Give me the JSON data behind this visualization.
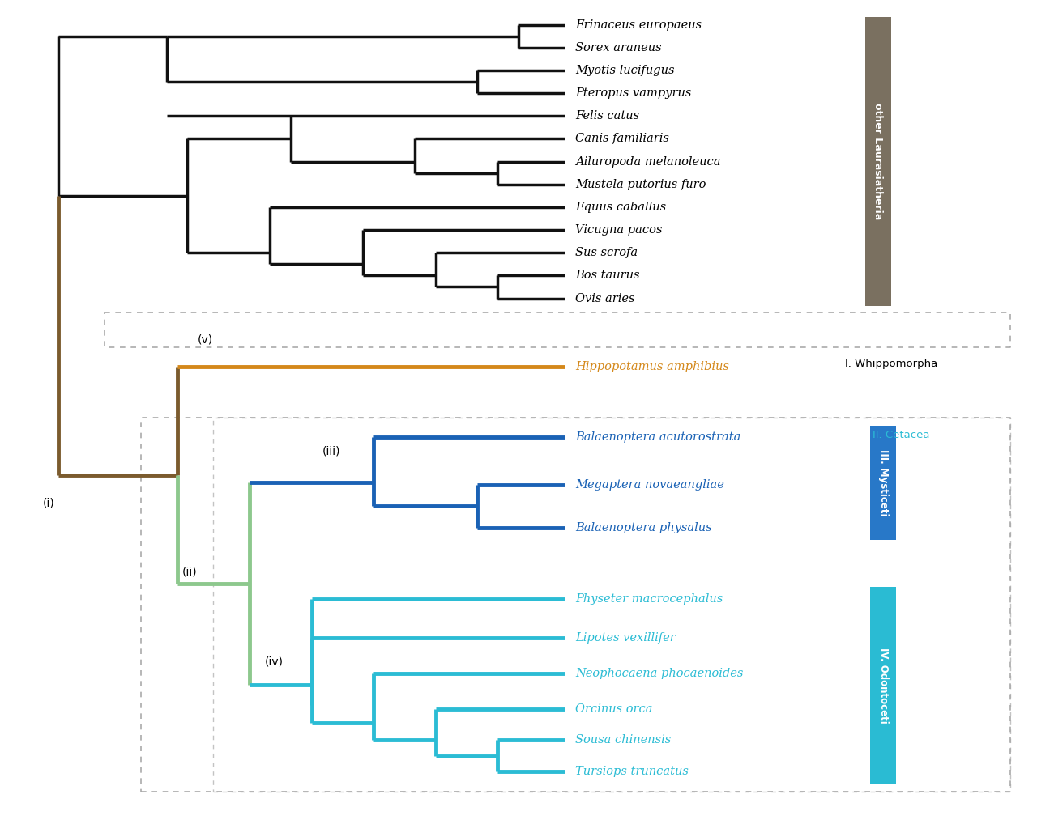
{
  "other_laurasiatheria_taxa": [
    "Erinaceus europaeus",
    "Sorex araneus",
    "Myotis lucifugus",
    "Pteropus vampyrus",
    "Felis catus",
    "Canis familiaris",
    "Ailuropoda melanoleuca",
    "Mustela putorius furo",
    "Equus caballus",
    "Vicugna pacos",
    "Sus scrofa",
    "Bos taurus",
    "Ovis aries"
  ],
  "hippo_taxon": "Hippopotamus amphibius",
  "mysticeti_taxa": [
    "Balaenoptera acutorostrata",
    "Megaptera novaeangliae",
    "Balaenoptera physalus"
  ],
  "odontoceti_taxa": [
    "Physeter macrocephalus",
    "Lipotes vexillifer",
    "Neophocaena phocaenoides",
    "Orcinus orca",
    "Sousa chinensis",
    "Tursiops truncatus"
  ],
  "colors": {
    "other": "#111111",
    "hippo": "#D4881A",
    "clade_i_brown": "#7B5B2E",
    "clade_ii_green": "#8DC88D",
    "mysticeti": "#1A62B5",
    "odontoceti": "#2BBCD4",
    "bar_other": "#7A7060",
    "bar_mysticeti": "#2878C8",
    "bar_odontoceti": "#2ABBD3",
    "label_hippo": "#D4881A",
    "label_mysticeti": "#1A62B5",
    "label_odontoceti": "#2BBCD4",
    "dotted_box": "#AAAAAA",
    "whippomorpha_text": "#333333",
    "cetacea_text": "#2BBCD4"
  },
  "node_labels": [
    "(i)",
    "(ii)",
    "(iii)",
    "(iv)",
    "(v)"
  ],
  "group_labels": {
    "other_laurasiatheria": "other Laurasiatheria",
    "whippomorpha": "I. Whippomorpha",
    "cetacea": "II. Cetacea",
    "mysticeti": "III. Mysticeti",
    "odontoceti": "IV. Odontoceti"
  },
  "background_color": "#FFFFFF"
}
